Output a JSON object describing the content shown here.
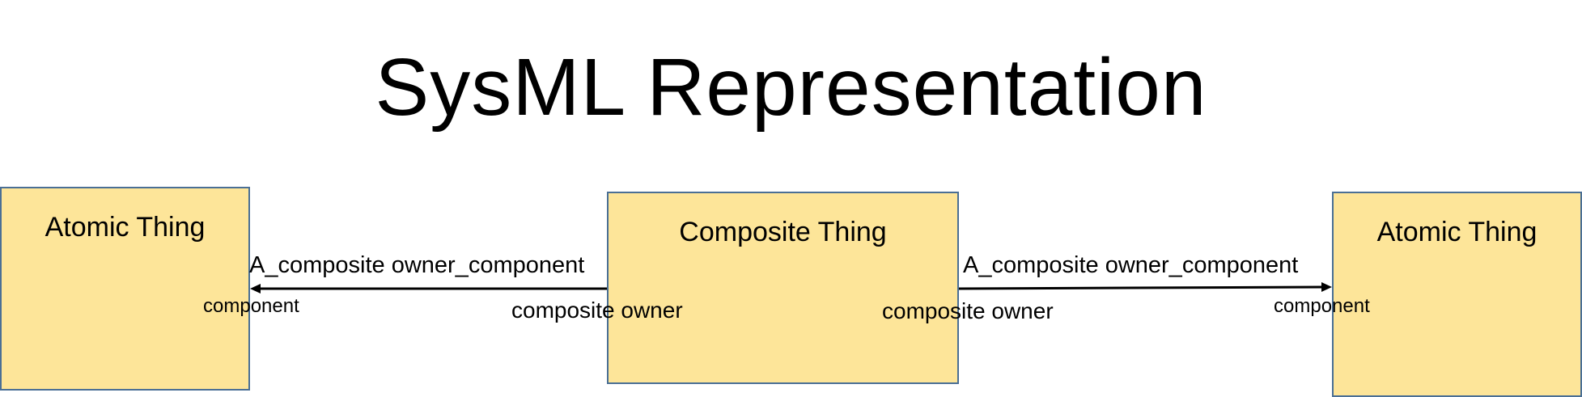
{
  "title": "SysML Representation",
  "blocks": {
    "left": {
      "name": "Atomic Thing"
    },
    "center": {
      "name": "Composite Thing"
    },
    "right": {
      "name": "Atomic Thing"
    }
  },
  "associations": {
    "left": {
      "name": "A_composite owner_component",
      "target_role": "component",
      "source_role": "composite owner"
    },
    "right": {
      "name": "A_composite owner_component",
      "source_role": "composite owner",
      "target_role": "component"
    }
  },
  "colors": {
    "block_fill": "#fde599",
    "block_border": "#4a6f95",
    "line": "#000000"
  }
}
